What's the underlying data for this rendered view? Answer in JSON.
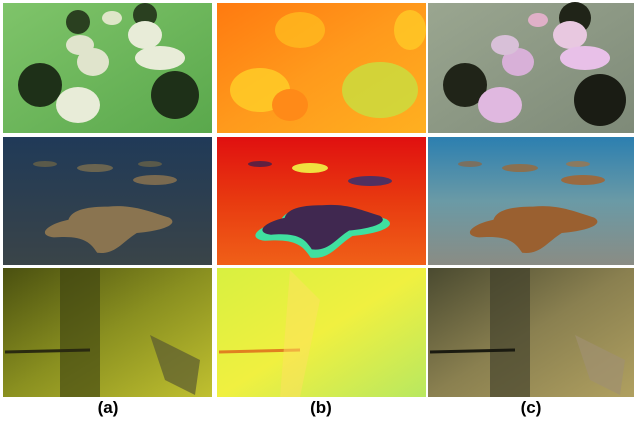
{
  "panels": {
    "labels": [
      "(a)",
      "(b)",
      "(c)"
    ]
  }
}
